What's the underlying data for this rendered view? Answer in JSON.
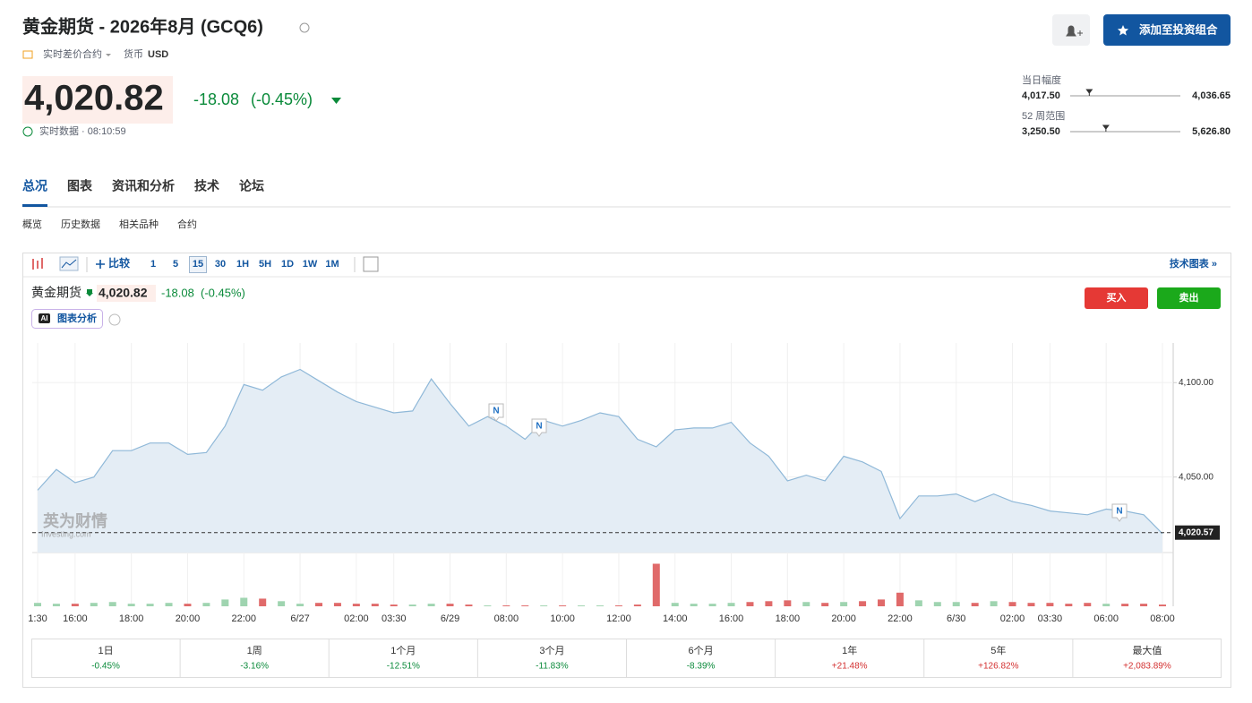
{
  "header": {
    "title": "黄金期货 - 2026年8月 (GCQ6)",
    "contract": "实时差价合约",
    "currency_label": "货币",
    "currency": "USD",
    "price": {
      "value": 4020.82,
      "label": "4,020.82"
    },
    "change": "-18.08",
    "change_pct": "(-0.45%)",
    "status": "实时数据 · 08:10:59",
    "add_portfolio": "添加至投资组合"
  },
  "ranges": [
    {
      "label": "当日幅度",
      "low": {
        "value": 4017.5,
        "label": "4,017.50"
      },
      "high": {
        "value": 4036.65,
        "label": "4,036.65"
      }
    },
    {
      "label": "52 周范围",
      "low": {
        "value": 3250.5,
        "label": "3,250.50"
      },
      "high": {
        "value": 5626.8,
        "label": "5,626.80"
      }
    }
  ],
  "tabs": {
    "items": [
      "总况",
      "图表",
      "资讯和分析",
      "技术",
      "论坛"
    ],
    "active": 0
  },
  "subtabs": {
    "items": [
      "概览",
      "历史数据",
      "相关品种",
      "合约"
    ]
  },
  "toolbar": {
    "compare": "比较",
    "intervals": [
      "1",
      "5",
      "15",
      "30",
      "1H",
      "5H",
      "1D",
      "1W",
      "1M"
    ],
    "active_interval": 2,
    "technical_chart": "技术图表 »"
  },
  "chart_header": {
    "name": "黄金期货",
    "price": "4,020.82",
    "change": "-18.08",
    "change_pct": "(-0.45%)",
    "ai_badge": "AI",
    "ai_analysis": "图表分析",
    "buy": "买入",
    "sell": "卖出"
  },
  "watermark": [
    "英为财情",
    "Investing.com"
  ],
  "chart": {
    "type": "area",
    "color": "#8fb8d8",
    "fill": "#e4edf5",
    "categories": [
      "1:30",
      null,
      "16:00",
      null,
      null,
      "18:00",
      null,
      null,
      "20:00",
      null,
      null,
      "22:00",
      null,
      null,
      "6/27",
      null,
      null,
      "02:00",
      null,
      "03:30",
      null,
      null,
      "6/29",
      null,
      null,
      "08:00",
      null,
      null,
      "10:00",
      null,
      null,
      "12:00",
      null,
      null,
      "14:00",
      null,
      null,
      "16:00",
      null,
      null,
      "18:00",
      null,
      null,
      "20:00",
      null,
      null,
      "22:00",
      null,
      null,
      "6/30",
      null,
      null,
      "02:00",
      null,
      "03:30",
      null,
      null,
      "06:00",
      null,
      null,
      "08:00"
    ],
    "values": [
      4043,
      4054,
      4047,
      4050,
      4064,
      4064,
      4068,
      4068,
      4062,
      4063,
      4077,
      4099,
      4096,
      4103,
      4107,
      4101,
      4095,
      4090,
      4087,
      4084,
      4085,
      4102,
      4089,
      4077,
      4082,
      4077,
      4070,
      4080,
      4077,
      4080,
      4084,
      4082,
      4070,
      4066,
      4075,
      4076,
      4076,
      4079,
      4068,
      4061,
      4048,
      4051,
      4048,
      4061,
      4058,
      4053,
      4028,
      4040,
      4040,
      4041,
      4037,
      4041,
      4037,
      4035,
      4032,
      4031,
      4030,
      4033,
      4032,
      4030,
      4020
    ],
    "ylim": [
      4010,
      4121
    ],
    "yticks": [
      {
        "value": 4050,
        "label": "4,050.00"
      },
      {
        "value": 4100,
        "label": "4,100.00"
      }
    ],
    "last": {
      "value": 4020.57,
      "label": "4,020.57"
    },
    "news_markers": [
      "N",
      "N",
      "N"
    ],
    "volumes": [
      4,
      3,
      3,
      4,
      5,
      3,
      3,
      4,
      3,
      4,
      8,
      10,
      9,
      6,
      3,
      4,
      4,
      3,
      3,
      2,
      2,
      3,
      3,
      2,
      1,
      1,
      1,
      1,
      1,
      1,
      1,
      1,
      2,
      50,
      4,
      3,
      3,
      4,
      5,
      6,
      7,
      5,
      4,
      5,
      6,
      8,
      16,
      7,
      5,
      5,
      4,
      6,
      5,
      4,
      4,
      3,
      4,
      3,
      3,
      3,
      2
    ],
    "volume_ylim": [
      0,
      60
    ],
    "up_color": "#9fd4b0",
    "down_color": "#e06a6a"
  },
  "performance": [
    {
      "period": "1日",
      "change": "-0.45%"
    },
    {
      "period": "1周",
      "change": "-3.16%"
    },
    {
      "period": "1个月",
      "change": "-12.51%"
    },
    {
      "period": "3个月",
      "change": "-11.83%"
    },
    {
      "period": "6个月",
      "change": "-8.39%"
    },
    {
      "period": "1年",
      "change": "+21.48%"
    },
    {
      "period": "5年",
      "change": "+126.82%"
    },
    {
      "period": "最大值",
      "change": "+2,083.89%"
    }
  ]
}
